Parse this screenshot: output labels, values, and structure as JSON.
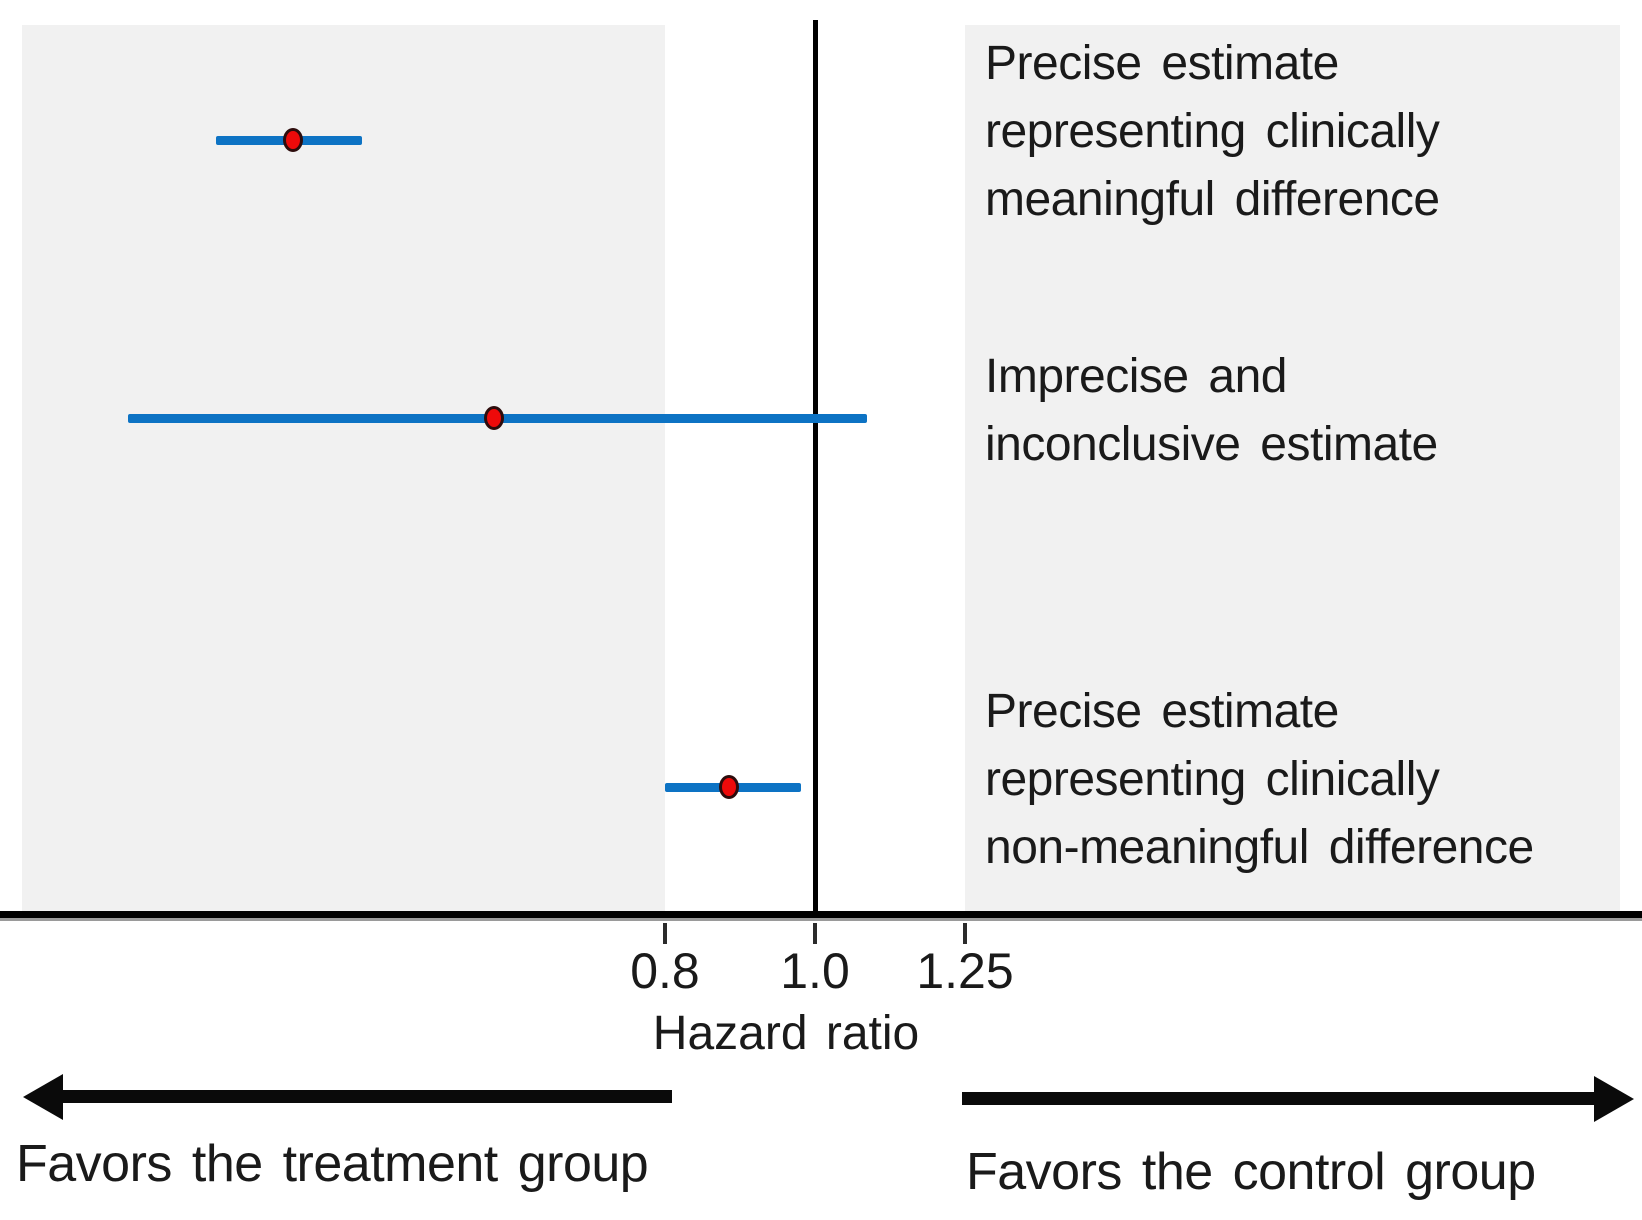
{
  "chart_data": {
    "type": "forest_plot",
    "x_scale": "log",
    "x_axis": {
      "label": "Hazard ratio",
      "ticks": [
        {
          "value": 0.8,
          "label": "0.8"
        },
        {
          "value": 1.0,
          "label": "1.0"
        },
        {
          "value": 1.25,
          "label": "1.25"
        }
      ],
      "reference_line_value": 1.0,
      "range_approx": [
        0.31,
        2.1
      ]
    },
    "shaded_regions": [
      {
        "side": "left",
        "to_value": 0.8,
        "description": "shaded zone for hazard ratio below 0.8"
      },
      {
        "side": "right",
        "from_value": 1.25,
        "description": "shaded zone for hazard ratio above 1.25"
      }
    ],
    "series": [
      {
        "label": "Precise estimate representing clinically meaningful difference",
        "label_lines": [
          "Precise estimate",
          "representing clinically",
          "meaningful difference"
        ],
        "estimate": 0.46,
        "ci_lower": 0.41,
        "ci_upper": 0.51
      },
      {
        "label": "Imprecise and inconclusive estimate",
        "label_lines": [
          "Imprecise and",
          "inconclusive estimate"
        ],
        "estimate": 0.62,
        "ci_lower": 0.36,
        "ci_upper": 1.08
      },
      {
        "label": "Precise estimate representing clinically non-meaningful difference",
        "label_lines": [
          "Precise estimate",
          "representing clinically",
          "non-meaningful difference"
        ],
        "estimate": 0.88,
        "ci_lower": 0.8,
        "ci_upper": 0.98
      }
    ],
    "direction_labels": {
      "left": "Favors the treatment group",
      "right": "Favors the control group"
    },
    "legend_position": "none",
    "grid": false,
    "colors": {
      "ci_line": "#0d73c4",
      "point_fill": "#ee0a0a",
      "point_ring": "#2d0c0c",
      "shaded_region": "#f1f1f1",
      "axis": "#000000",
      "text": "#1a1a1a"
    }
  }
}
